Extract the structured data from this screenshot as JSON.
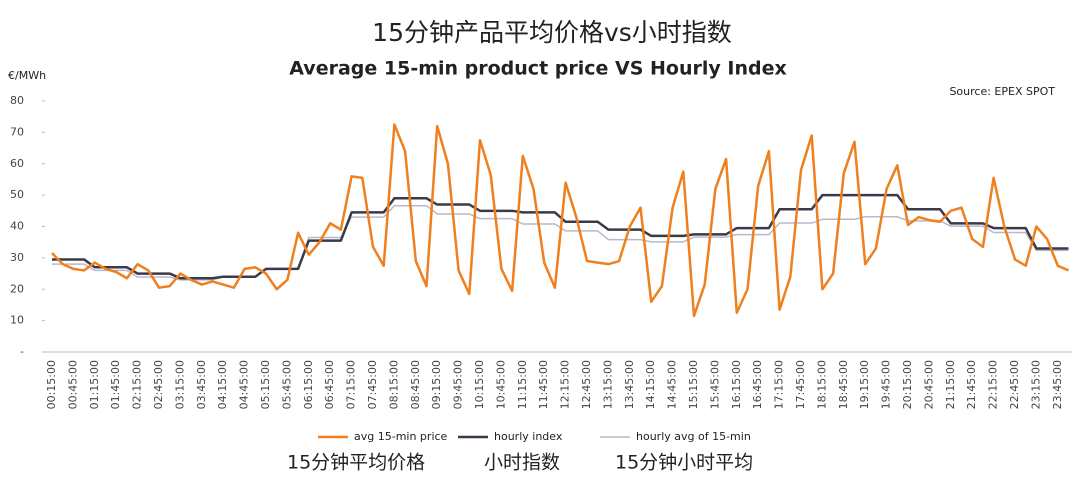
{
  "chart_data": {
    "type": "line",
    "title": "15分钟产品平均价格vs小时指数",
    "subtitle": "Average 15-min product price VS Hourly Index",
    "y_label": "€/MWh",
    "source": "Source: EPEX SPOT",
    "annotations": [
      "15分钟平均价格",
      "小时指数",
      "15分钟小时平均"
    ],
    "categories": [
      "00:15:00",
      null,
      "00:45:00",
      null,
      "01:15:00",
      null,
      "01:45:00",
      null,
      "02:15:00",
      null,
      "02:45:00",
      null,
      "03:15:00",
      null,
      "03:45:00",
      null,
      "04:15:00",
      null,
      "04:45:00",
      null,
      "05:15:00",
      null,
      "05:45:00",
      null,
      "06:15:00",
      null,
      "06:45:00",
      null,
      "07:15:00",
      null,
      "07:45:00",
      null,
      "08:15:00",
      null,
      "08:45:00",
      null,
      "09:15:00",
      null,
      "09:45:00",
      null,
      "10:15:00",
      null,
      "10:45:00",
      null,
      "11:15:00",
      null,
      "11:45:00",
      null,
      "12:15:00",
      null,
      "12:45:00",
      null,
      "13:15:00",
      null,
      "13:45:00",
      null,
      "14:15:00",
      null,
      "14:45:00",
      null,
      "15:15:00",
      null,
      "15:45:00",
      null,
      "16:15:00",
      null,
      "16:45:00",
      null,
      "17:15:00",
      null,
      "17:45:00",
      null,
      "18:15:00",
      null,
      "18:45:00",
      null,
      "19:15:00",
      null,
      "19:45:00",
      null,
      "20:15:00",
      null,
      "20:45:00",
      null,
      "21:15:00",
      null,
      "21:45:00",
      null,
      "22:15:00",
      null,
      "22:45:00",
      null,
      "23:15:00",
      null,
      "23:45:00",
      null
    ],
    "series": [
      {
        "name": "avg 15-min price",
        "color": "#f07f1e",
        "width": 2.5,
        "values": [
          31.5,
          28,
          26.5,
          26,
          28.5,
          26.5,
          25.5,
          23.5,
          28,
          26,
          20.5,
          21,
          25,
          23,
          21.5,
          22.5,
          21.5,
          20.5,
          26.5,
          27,
          25,
          20,
          23,
          38,
          31,
          35,
          41,
          39,
          56,
          55.5,
          33.5,
          27.5,
          72.5,
          64,
          29,
          21,
          72,
          60,
          26,
          18.5,
          67.5,
          56.5,
          26.5,
          19.5,
          62.5,
          52,
          28.5,
          20.5,
          54,
          43,
          29,
          28.5,
          28,
          29,
          40,
          46,
          16,
          21,
          46,
          57.5,
          11.5,
          21.5,
          52,
          61.5,
          12.5,
          20,
          53,
          64,
          13.5,
          24,
          58,
          69,
          20,
          25,
          57,
          67,
          28,
          33,
          52,
          59.5,
          40.5,
          43,
          42,
          41.5,
          45,
          46,
          36,
          33.5,
          55.5,
          40,
          29.5,
          27.5,
          40,
          36,
          27.5,
          26
        ]
      },
      {
        "name": "hourly index",
        "color": "#3a3a4a",
        "width": 2.5,
        "values": [
          29.5,
          29.5,
          29.5,
          29.5,
          27,
          27,
          27,
          27,
          25,
          25,
          25,
          25,
          23.5,
          23.5,
          23.5,
          23.5,
          24,
          24,
          24,
          24,
          26.5,
          26.5,
          26.5,
          26.5,
          35.5,
          35.5,
          35.5,
          35.5,
          44.5,
          44.5,
          44.5,
          44.5,
          49,
          49,
          49,
          49,
          47,
          47,
          47,
          47,
          45,
          45,
          45,
          45,
          44.5,
          44.5,
          44.5,
          44.5,
          41.5,
          41.5,
          41.5,
          41.5,
          39,
          39,
          39,
          39,
          37,
          37,
          37,
          37,
          37.5,
          37.5,
          37.5,
          37.5,
          39.5,
          39.5,
          39.5,
          39.5,
          45.5,
          45.5,
          45.5,
          45.5,
          50,
          50,
          50,
          50,
          50,
          50,
          50,
          50,
          45.5,
          45.5,
          45.5,
          45.5,
          41,
          41,
          41,
          41,
          39.5,
          39.5,
          39.5,
          39.5,
          33,
          33,
          33,
          33
        ]
      },
      {
        "name": "hourly avg of 15-min",
        "color": "#b8b8c8",
        "width": 1.5,
        "values": [
          28,
          28,
          28,
          28,
          26,
          26,
          26,
          26,
          23.9,
          23.9,
          23.9,
          23.9,
          23,
          23,
          23,
          23,
          23.9,
          23.9,
          23.9,
          23.9,
          26.5,
          26.5,
          26.5,
          26.5,
          36.5,
          36.5,
          36.5,
          36.5,
          43,
          43,
          43,
          43,
          46.6,
          46.6,
          46.6,
          46.6,
          44,
          44,
          44,
          44,
          42.5,
          42.5,
          42.5,
          42.5,
          40.8,
          40.8,
          40.8,
          40.8,
          38.6,
          38.6,
          38.6,
          38.6,
          35.8,
          35.8,
          35.8,
          35.8,
          35.1,
          35.1,
          35.1,
          35.1,
          36.6,
          36.6,
          36.6,
          36.6,
          37.4,
          37.4,
          37.4,
          37.4,
          41.1,
          41.1,
          41.1,
          41.1,
          42.3,
          42.3,
          42.3,
          42.3,
          43.1,
          43.1,
          43.1,
          43.1,
          41.8,
          41.8,
          41.8,
          41.8,
          40.1,
          40.1,
          40.1,
          40.1,
          38.1,
          38.1,
          38.1,
          38.1,
          32.4,
          32.4,
          32.4,
          32.4
        ]
      }
    ],
    "ylim": [
      0,
      80
    ],
    "yticks": [
      {
        "value": 0,
        "label": "-"
      },
      10,
      20,
      30,
      40,
      50,
      60,
      70,
      80
    ],
    "grid": false
  }
}
